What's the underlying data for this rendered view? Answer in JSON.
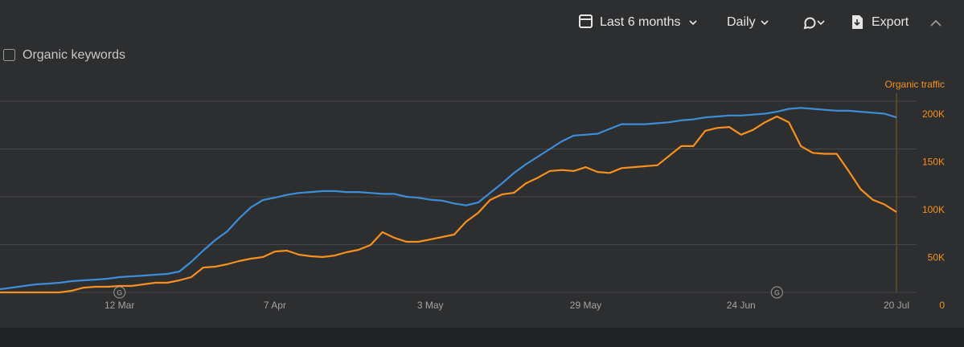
{
  "toolbar": {
    "period": "Last 6 months",
    "interval": "Daily",
    "export": "Export"
  },
  "legend": {
    "checkbox_label": "Organic keywords"
  },
  "chart_data": {
    "type": "line",
    "y_axis_label": "Organic traffic",
    "categories": [
      null,
      null,
      null,
      null,
      null,
      null,
      null,
      null,
      null,
      null,
      "12 Mar",
      null,
      null,
      null,
      null,
      null,
      null,
      null,
      null,
      null,
      null,
      null,
      null,
      "7 Apr",
      null,
      null,
      null,
      null,
      null,
      null,
      null,
      null,
      null,
      null,
      null,
      null,
      "3 May",
      null,
      null,
      null,
      null,
      null,
      null,
      null,
      null,
      null,
      null,
      null,
      null,
      "29 May",
      null,
      null,
      null,
      null,
      null,
      null,
      null,
      null,
      null,
      null,
      null,
      null,
      "24 Jun",
      null,
      null,
      null,
      null,
      null,
      null,
      null,
      null,
      null,
      null,
      null,
      null,
      "20 Jul"
    ],
    "series": [
      {
        "name": "Organic keywords",
        "color": "#3d8ed9",
        "values": [
          3400,
          5000,
          6700,
          8400,
          9200,
          10100,
          11800,
          12600,
          13400,
          14300,
          16000,
          16800,
          17600,
          18500,
          19300,
          21800,
          31900,
          43700,
          54600,
          63800,
          77300,
          89000,
          96600,
          99100,
          102000,
          104000,
          105000,
          106000,
          106000,
          105000,
          105000,
          104000,
          103000,
          103000,
          100000,
          99000,
          97000,
          96000,
          93000,
          91000,
          94000,
          104000,
          114000,
          125000,
          134000,
          142000,
          150000,
          158000,
          164000,
          165000,
          166000,
          171000,
          176000,
          176000,
          176000,
          177000,
          178000,
          180000,
          181000,
          183000,
          184000,
          185000,
          185000,
          186000,
          187000,
          189000,
          192000,
          193000,
          192000,
          191000,
          190000,
          190000,
          189000,
          188000,
          187000,
          183000
        ]
      },
      {
        "name": "Organic traffic",
        "color": "#f7901e",
        "values": [
          0,
          0,
          0,
          0,
          0,
          0,
          1700,
          5000,
          5900,
          5900,
          6700,
          6700,
          8400,
          10100,
          10100,
          12600,
          16000,
          26000,
          26900,
          29400,
          32800,
          35300,
          37000,
          42800,
          43700,
          39500,
          37800,
          37000,
          38600,
          42000,
          44500,
          49600,
          63000,
          57100,
          52900,
          52900,
          55400,
          58000,
          60500,
          74000,
          83200,
          96600,
          102500,
          104200,
          114000,
          120000,
          127000,
          128000,
          127000,
          131000,
          126000,
          125000,
          130000,
          131000,
          132000,
          133000,
          143000,
          153000,
          153000,
          169000,
          172000,
          173000,
          165000,
          170000,
          178000,
          184000,
          178000,
          153000,
          146000,
          145000,
          145000,
          127000,
          108000,
          97000,
          92000,
          84000
        ]
      }
    ],
    "ylim": [
      0,
      200000
    ],
    "yticks": [
      {
        "value": 0,
        "label": "0"
      },
      {
        "value": 50000,
        "label": "50K"
      },
      {
        "value": 100000,
        "label": "100K"
      },
      {
        "value": 150000,
        "label": "150K"
      },
      {
        "value": 200000,
        "label": "200K"
      }
    ],
    "grid": true,
    "annotations": [
      {
        "category": 10,
        "label": "G"
      },
      {
        "category": 65,
        "label": "G"
      }
    ]
  }
}
